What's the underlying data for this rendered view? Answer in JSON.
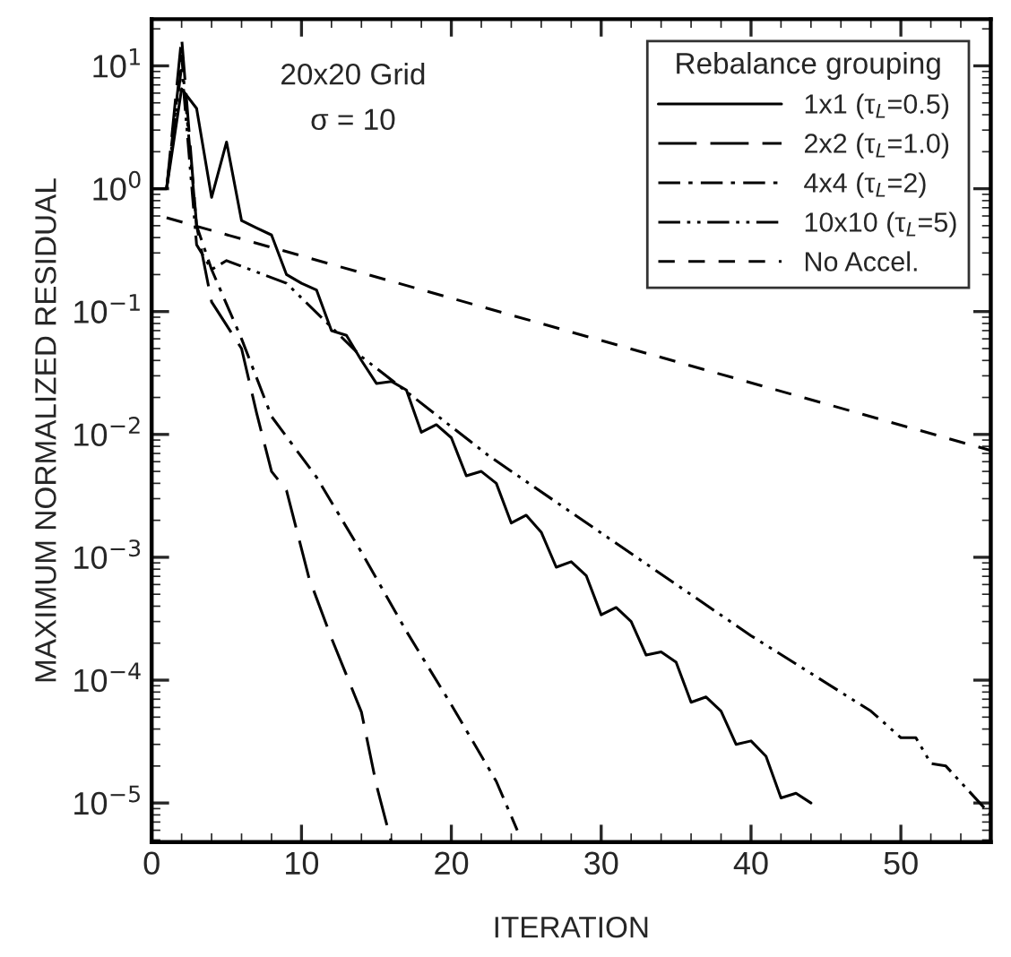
{
  "chart_data": {
    "type": "line",
    "xlabel": "ITERATION",
    "ylabel": "MAXIMUM NORMALIZED RESIDUAL",
    "legend_title": "Rebalance grouping",
    "legend": "top right",
    "grid": false,
    "log": "y",
    "marker": "none",
    "annotations": [
      "20x20 Grid",
      "σ = 10"
    ],
    "xlim": [
      0,
      56
    ],
    "xticks": [
      0,
      10,
      20,
      30,
      40,
      50
    ],
    "ylim": [
      4.8e-06,
      24
    ],
    "yticks": [
      {
        "value": 1e-05,
        "label": "10$^{−5}$"
      },
      {
        "value": 0.0001,
        "label": "10$^{−4}$"
      },
      {
        "value": 0.001,
        "label": "10$^{−3}$"
      },
      {
        "value": 0.01,
        "label": "10$^{−2}$"
      },
      {
        "value": 0.1,
        "label": "10$^{−1}$"
      },
      {
        "value": 1,
        "label": "10$^{0}$"
      },
      {
        "value": 10,
        "label": "10$^{1}$"
      }
    ],
    "series": [
      {
        "name": "1x1 (τ$_{L}$=0.5)",
        "color": "#000000",
        "line_style": "solid",
        "x": [
          0,
          1,
          2,
          3,
          4,
          5,
          6,
          7,
          8,
          9,
          10,
          11,
          12,
          13,
          14,
          15,
          16,
          17,
          18,
          19,
          20,
          21,
          22,
          23,
          24,
          25,
          26,
          27,
          28,
          29,
          30,
          31,
          32,
          33,
          34,
          35,
          36,
          37,
          38,
          39,
          40,
          41,
          42,
          43,
          44
        ],
        "values": [
          1,
          1,
          6.5,
          4.5,
          0.85,
          2.4,
          0.55,
          0.48,
          0.42,
          0.2,
          0.17,
          0.15,
          0.07,
          0.064,
          0.04,
          0.026,
          0.027,
          0.023,
          0.0104,
          0.012,
          0.0094,
          0.0046,
          0.005,
          0.004,
          0.0019,
          0.0022,
          0.0016,
          0.00083,
          0.00092,
          0.00071,
          0.00034,
          0.00039,
          0.0003,
          0.00016,
          0.00017,
          0.00014,
          6.6e-05,
          7.3e-05,
          5.6e-05,
          3e-05,
          3.2e-05,
          2.4e-05,
          1.1e-05,
          1.2e-05,
          1e-05
        ]
      },
      {
        "name": "2x2 (τ$_{L}$=1.0)",
        "color": "#000000",
        "line_style": "longdashed",
        "x": [
          1,
          2,
          3,
          4,
          6,
          7,
          8,
          9,
          10.5,
          12,
          14,
          15,
          16
        ],
        "values": [
          1,
          17,
          0.5,
          0.12,
          0.05,
          0.015,
          0.005,
          0.0035,
          0.00068,
          0.00022,
          5.5e-05,
          1.4e-05,
          4.8e-06
        ]
      },
      {
        "name": "4x4 (τ$_{L}$=2)",
        "color": "#000000",
        "line_style": "dashdot",
        "x": [
          1,
          2,
          3,
          4,
          6,
          8,
          11,
          14,
          17,
          20,
          23,
          24.4
        ],
        "values": [
          1,
          12,
          0.5,
          0.22,
          0.06,
          0.014,
          0.0045,
          0.0011,
          0.00025,
          6.3e-05,
          1.5e-05,
          6e-06
        ]
      },
      {
        "name": "10x10 (τ$_{L}$=5)",
        "color": "#000000",
        "line_style": "dashdotdot",
        "x": [
          1,
          2,
          3,
          4,
          5,
          9,
          14,
          22.5,
          31,
          40,
          48,
          50,
          51,
          52,
          53,
          56
        ],
        "values": [
          1,
          10,
          0.35,
          0.22,
          0.26,
          0.17,
          0.043,
          0.0067,
          0.0013,
          0.00023,
          5.6e-05,
          3.4e-05,
          3.4e-05,
          2.1e-05,
          2e-05,
          8e-06
        ]
      },
      {
        "name": "No Accel.",
        "color": "#000000",
        "line_style": "dashed",
        "x": [
          1,
          56
        ],
        "values": [
          0.58,
          0.0074
        ]
      }
    ]
  }
}
